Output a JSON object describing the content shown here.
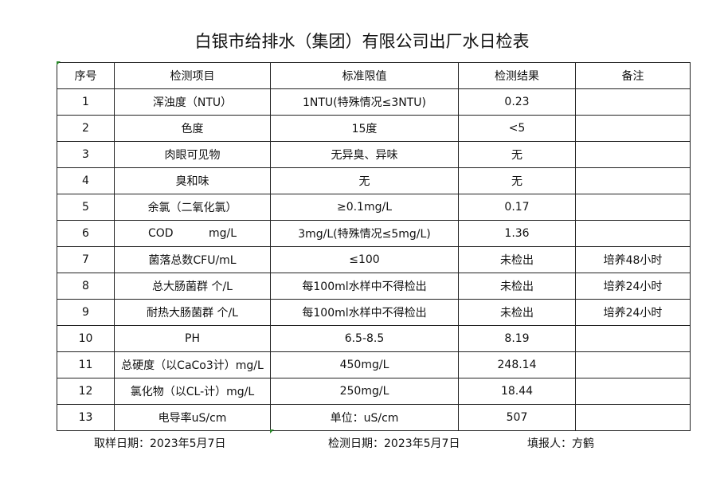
{
  "title": "白银市给排水（集团）有限公司出厂水日检表",
  "headers": [
    "序号",
    "检测项目",
    "标准限值",
    "检测结果",
    "备注"
  ],
  "rows": [
    [
      "1",
      "浑浊度（NTU）",
      "1NTU(特殊情况≤3NTU)",
      "0.23",
      ""
    ],
    [
      "2",
      "色度",
      "15度",
      "<5",
      ""
    ],
    [
      "3",
      "肉眼可见物",
      "无异臭、异味",
      "无",
      ""
    ],
    [
      "4",
      "臭和味",
      "无",
      "无",
      ""
    ],
    [
      "5",
      "余氯（二氧化氯）",
      "≥0.1mg/L",
      "0.17",
      ""
    ],
    [
      "6",
      "COD          mg/L",
      "3mg/L(特殊情况≤5mg/L)",
      "1.36",
      ""
    ],
    [
      "7",
      "菌落总数CFU/mL",
      "≤100",
      "未检出",
      "培养48小时"
    ],
    [
      "8",
      "总大肠菌群 个/L",
      "每100ml水样中不得检出",
      "未检出",
      "培养24小时"
    ],
    [
      "9",
      "耐热大肠菌群 个/L",
      "每100ml水样中不得检出",
      "未检出",
      "培养24小时"
    ],
    [
      "10",
      "PH",
      "6.5-8.5",
      "8.19",
      ""
    ],
    [
      "11",
      "总硬度（以CaCo3计）mg/L",
      "450mg/L",
      "248.14",
      ""
    ],
    [
      "12",
      "氯化物（以CL-计）mg/L",
      "250mg/L",
      "18.44",
      ""
    ],
    [
      "13",
      "电导率uS/cm",
      "单位：uS/cm",
      "507",
      ""
    ]
  ],
  "footer": {
    "sampling_date": "取样日期：2023年5月7日",
    "test_date": "检测日期：2023年5月7日",
    "filled_by": "填报人：方鹤"
  }
}
